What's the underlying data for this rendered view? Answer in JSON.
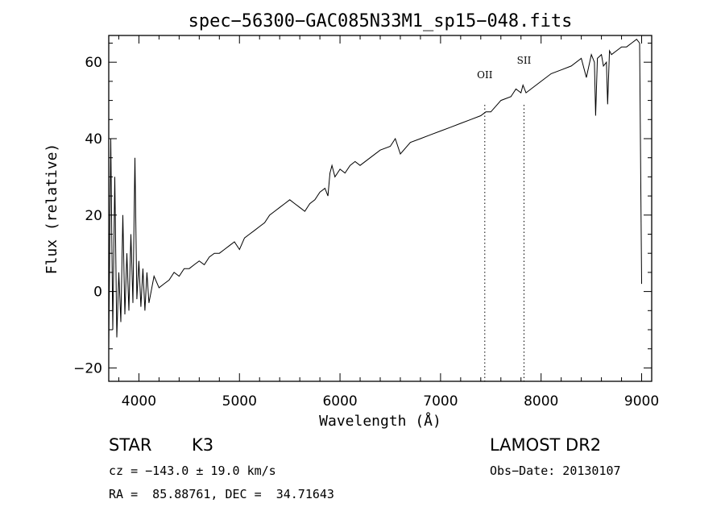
{
  "chart_data": {
    "type": "line",
    "title": "spec−56300−GAC085N33M1_sp15−048.fits",
    "xlabel": "Wavelength (Å)",
    "ylabel": "Flux (relative)",
    "xlim": [
      3700,
      9100
    ],
    "ylim": [
      -23.5,
      67
    ],
    "xticks": [
      4000,
      5000,
      6000,
      7000,
      8000,
      9000
    ],
    "xtick_labels": [
      "4000",
      "5000",
      "6000",
      "7000",
      "8000",
      "9000"
    ],
    "yticks": [
      -20,
      0,
      20,
      40,
      60
    ],
    "ytick_labels": [
      "−20",
      "0",
      "20",
      "40",
      "60"
    ],
    "grid": false,
    "series": [
      {
        "x": [
          3700,
          3720,
          3740,
          3760,
          3780,
          3800,
          3820,
          3840,
          3860,
          3880,
          3900,
          3920,
          3940,
          3960,
          3980,
          4000,
          4020,
          4040,
          4060,
          4080,
          4100,
          4150,
          4200,
          4250,
          4300,
          4350,
          4400,
          4450,
          4500,
          4550,
          4600,
          4650,
          4700,
          4750,
          4800,
          4850,
          4900,
          4950,
          5000,
          5050,
          5100,
          5150,
          5200,
          5250,
          5300,
          5350,
          5400,
          5450,
          5500,
          5550,
          5600,
          5650,
          5700,
          5750,
          5800,
          5850,
          5880,
          5900,
          5920,
          5950,
          6000,
          6050,
          6100,
          6150,
          6200,
          6300,
          6400,
          6500,
          6550,
          6600,
          6700,
          6800,
          6900,
          7000,
          7100,
          7200,
          7300,
          7400,
          7450,
          7500,
          7600,
          7700,
          7750,
          7800,
          7820,
          7850,
          7900,
          8000,
          8100,
          8200,
          8300,
          8400,
          8450,
          8500,
          8530,
          8542,
          8560,
          8600,
          8620,
          8650,
          8662,
          8680,
          8700,
          8750,
          8800,
          8850,
          8900,
          8950,
          8980,
          9000
        ],
        "y": [
          -15,
          40,
          -10,
          30,
          -12,
          5,
          -8,
          20,
          -6,
          10,
          -5,
          15,
          -3,
          35,
          -2,
          8,
          -4,
          6,
          -5,
          5,
          -3,
          4,
          1,
          2,
          3,
          5,
          4,
          6,
          6,
          7,
          8,
          7,
          9,
          10,
          10,
          11,
          12,
          13,
          11,
          14,
          15,
          16,
          17,
          18,
          20,
          21,
          22,
          23,
          24,
          23,
          22,
          21,
          23,
          24,
          26,
          27,
          25,
          31,
          33,
          30,
          32,
          31,
          33,
          34,
          33,
          35,
          37,
          38,
          40,
          36,
          39,
          40,
          41,
          42,
          43,
          44,
          45,
          46,
          47,
          47,
          50,
          51,
          53,
          52,
          54,
          52,
          53,
          55,
          57,
          58,
          59,
          61,
          56,
          62,
          60,
          46,
          61,
          62,
          59,
          60,
          49,
          63,
          62,
          63,
          64,
          64,
          65,
          66,
          65,
          2
        ],
        "color": "#000000"
      }
    ],
    "annotations": [
      {
        "label": "OII",
        "x": 7440
      },
      {
        "label": "SII",
        "x": 7830
      }
    ]
  },
  "info": {
    "object_type": "STAR",
    "subclass": "K3",
    "survey": "LAMOST DR2",
    "cz": "cz = −143.0 ± 19.0 km/s",
    "obs_date": "Obs−Date: 20130107",
    "radec": "RA =  85.88761, DEC =  34.71643"
  }
}
